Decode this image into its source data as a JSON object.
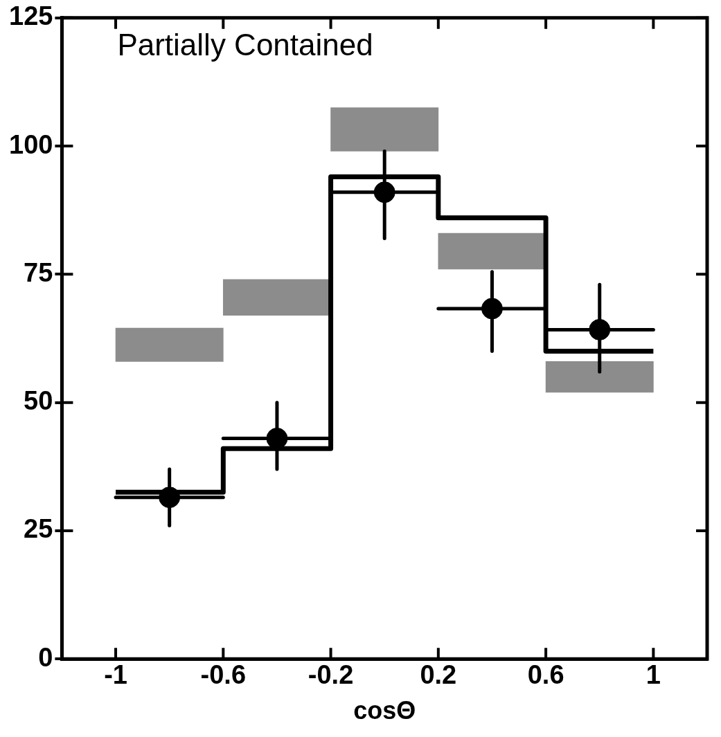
{
  "chart_data": {
    "type": "bar",
    "title": "Partially Contained",
    "xlabel": "cosΘ",
    "xlim": [
      -1,
      1
    ],
    "xticks": [
      -1,
      -0.6,
      -0.2,
      0.2,
      0.6,
      1
    ],
    "ylim": [
      0,
      125
    ],
    "yticks": [
      0,
      25,
      50,
      75,
      100,
      125
    ],
    "grid": false,
    "legend": false,
    "line_style": "solid",
    "series": [
      {
        "color": "#8c8c8c",
        "x": [
          -0.8,
          -0.4,
          0,
          0.4,
          0.8
        ],
        "base": [
          58,
          67,
          99,
          76,
          52
        ],
        "values": [
          6.5,
          7,
          8.5,
          7,
          6
        ]
      },
      {
        "type": "step",
        "marker": "none",
        "color": "#000000",
        "x": [
          -1,
          -0.6,
          -0.2,
          0.2,
          0.6,
          1
        ],
        "values": [
          32.5,
          41,
          94,
          86,
          60,
          60
        ]
      },
      {
        "type": "scatter",
        "marker": "circle",
        "color": "#000000",
        "x": [
          -0.8,
          -0.4,
          0,
          0.4,
          0.8
        ],
        "values": [
          31.5,
          43,
          91,
          68.3,
          64.2
        ],
        "errors": [
          [
            26,
            37
          ],
          [
            37,
            50
          ],
          [
            82,
            99
          ],
          [
            60,
            75.5
          ],
          [
            56,
            73
          ]
        ],
        "xerrors": [
          0.2,
          0.2,
          0.2,
          0.2,
          0.2
        ]
      }
    ]
  }
}
